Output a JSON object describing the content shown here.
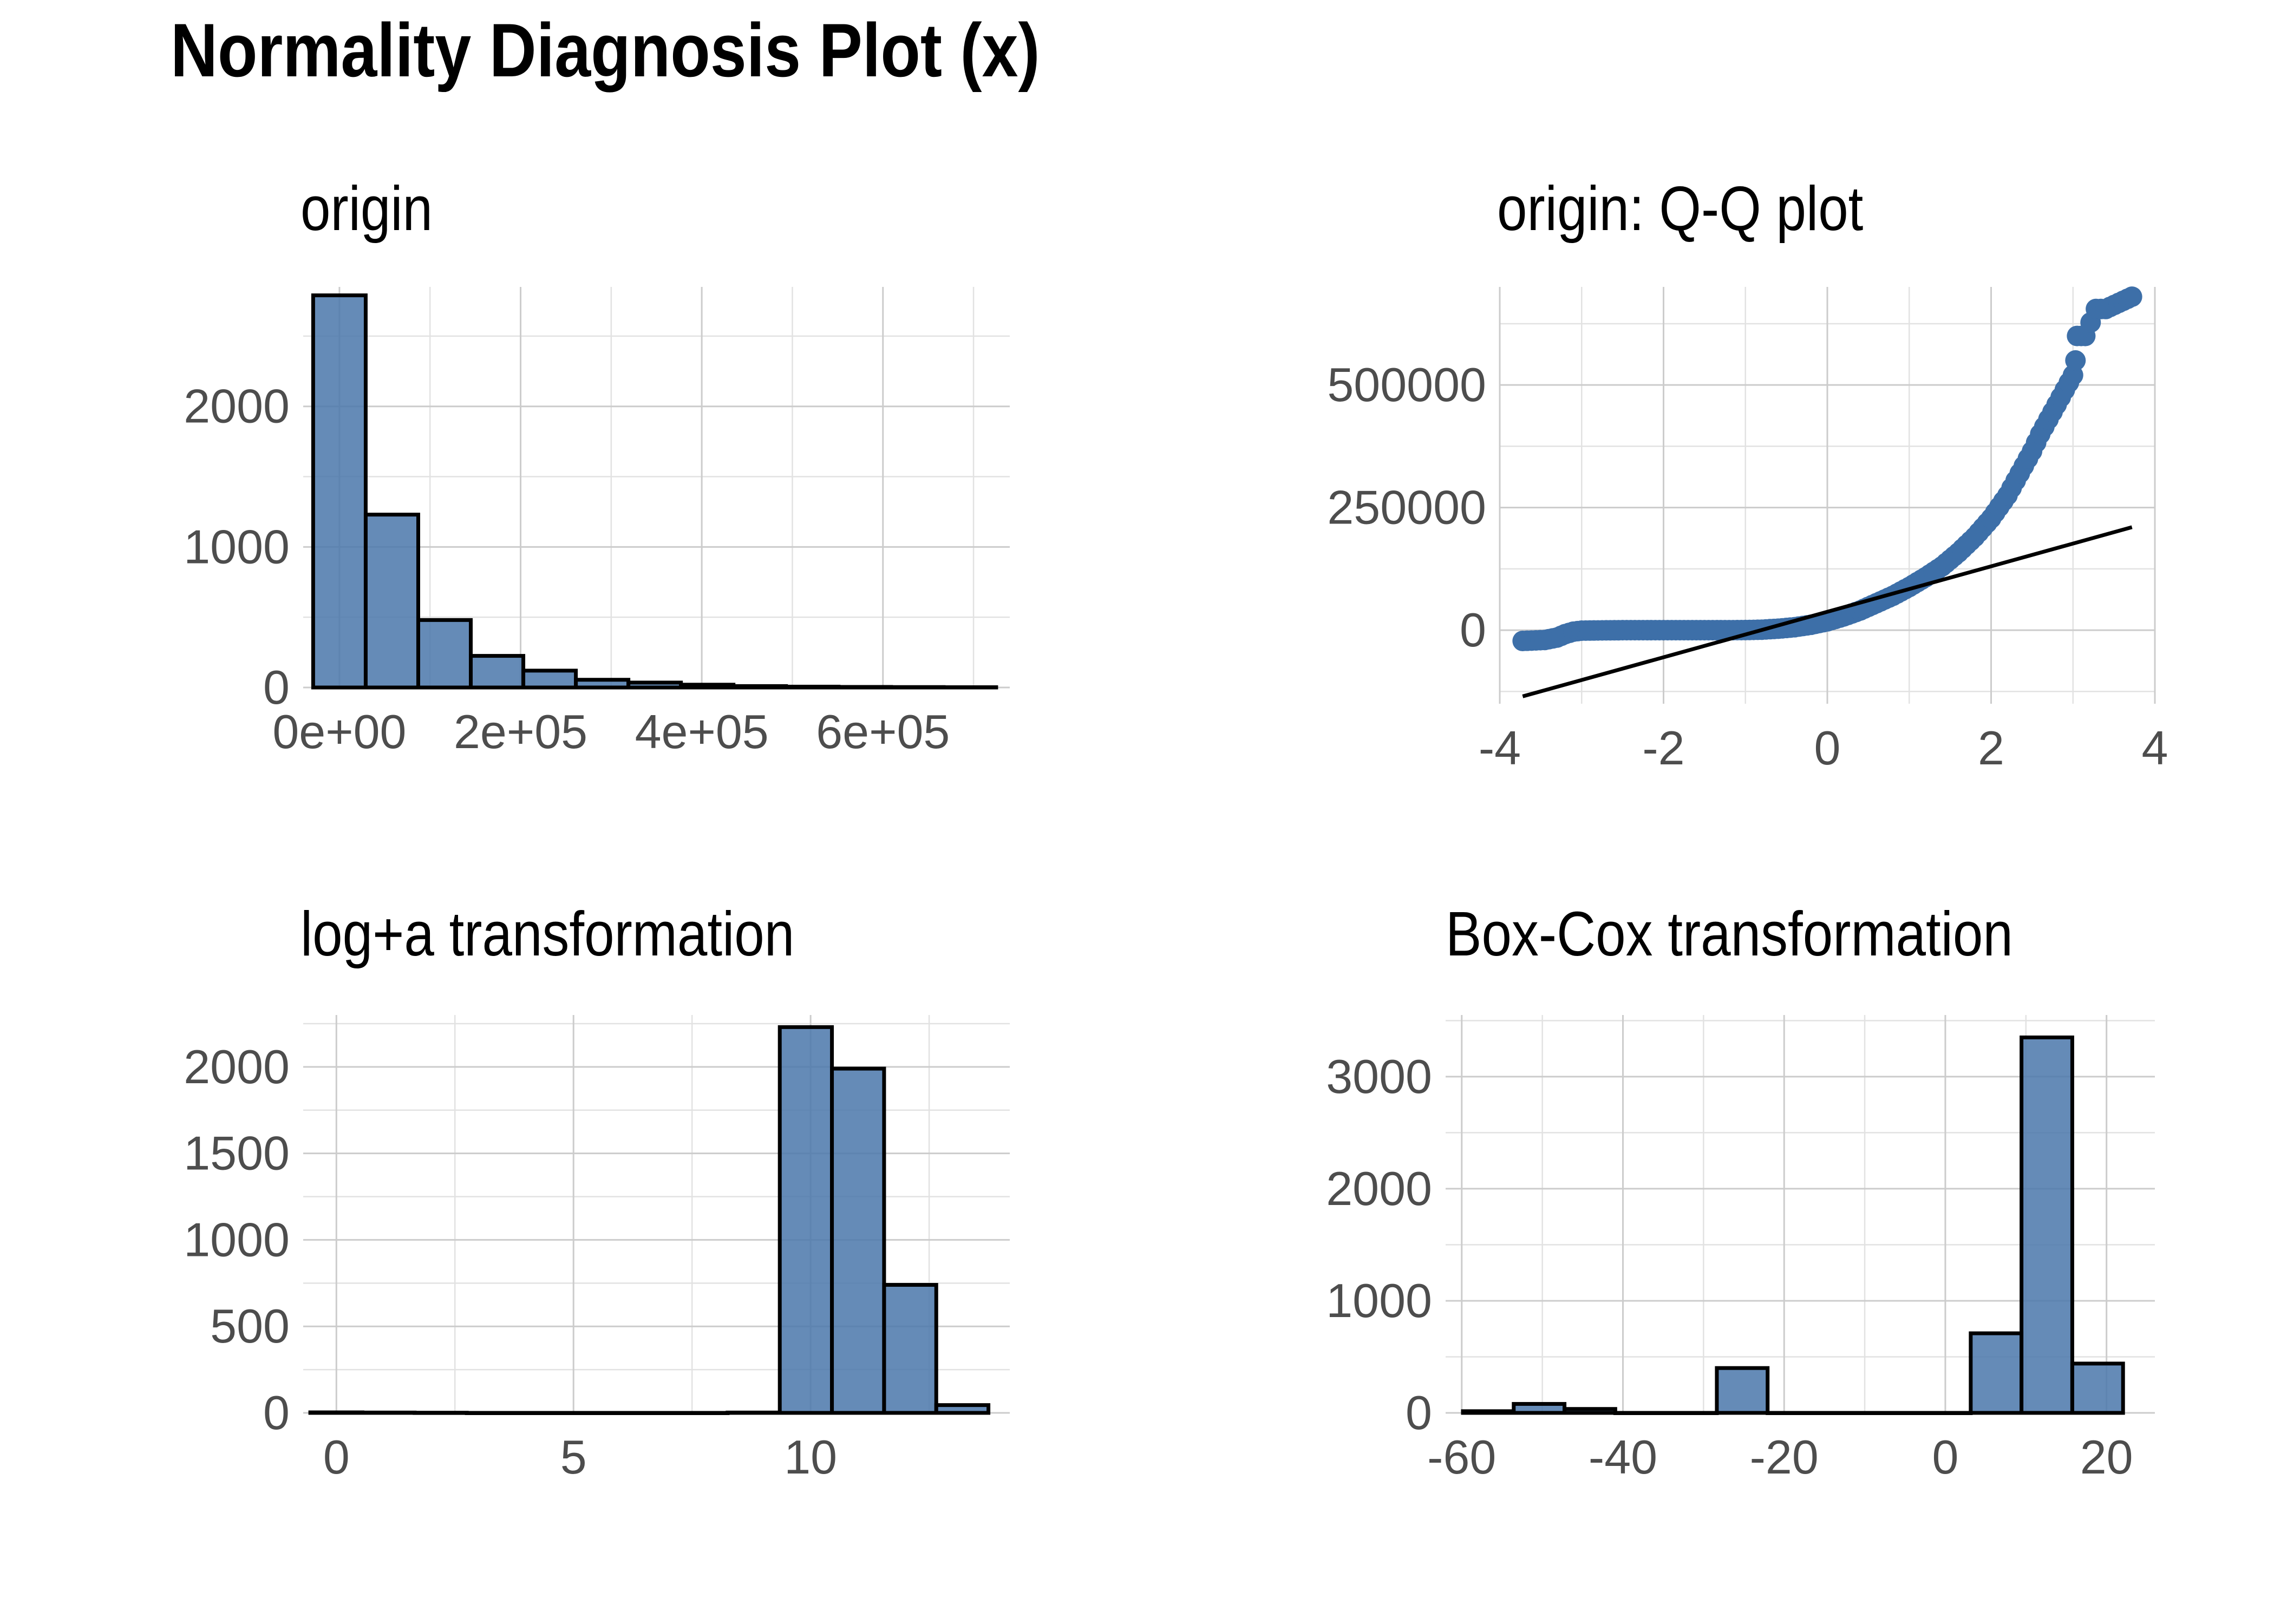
{
  "title": "Normality Diagnosis Plot (x)",
  "colors": {
    "fill": "#4a77aa",
    "point": "#3d6fa8",
    "outline": "#000000",
    "grid": "#cccccc",
    "tick_text": "#4d4d4d"
  },
  "chart_data": [
    {
      "id": "origin",
      "type": "bar",
      "title": "origin",
      "xlim": [
        -40000,
        740000
      ],
      "ylim": [
        0,
        2850
      ],
      "x_ticks": [
        {
          "value": 0,
          "label": "0e+00"
        },
        {
          "value": 200000,
          "label": "2e+05"
        },
        {
          "value": 400000,
          "label": "4e+05"
        },
        {
          "value": 600000,
          "label": "6e+05"
        }
      ],
      "y_ticks": [
        {
          "value": 0,
          "label": "0"
        },
        {
          "value": 1000,
          "label": "1000"
        },
        {
          "value": 2000,
          "label": "2000"
        }
      ],
      "bin_width": 58000,
      "bins": [
        {
          "x": 0,
          "count": 2790
        },
        {
          "x": 58000,
          "count": 1230
        },
        {
          "x": 116000,
          "count": 480
        },
        {
          "x": 174000,
          "count": 225
        },
        {
          "x": 232000,
          "count": 120
        },
        {
          "x": 290000,
          "count": 55
        },
        {
          "x": 348000,
          "count": 35
        },
        {
          "x": 406000,
          "count": 20
        },
        {
          "x": 464000,
          "count": 10
        },
        {
          "x": 522000,
          "count": 6
        },
        {
          "x": 580000,
          "count": 4
        },
        {
          "x": 638000,
          "count": 3
        },
        {
          "x": 696000,
          "count": 2
        }
      ]
    },
    {
      "id": "qq",
      "type": "scatter",
      "title": "origin: Q-Q plot",
      "xlim": [
        -4,
        4
      ],
      "ylim": [
        -150000,
        700000
      ],
      "x_ticks": [
        {
          "value": -4,
          "label": "-4"
        },
        {
          "value": -2,
          "label": "-2"
        },
        {
          "value": 0,
          "label": "0"
        },
        {
          "value": 2,
          "label": "2"
        },
        {
          "value": 4,
          "label": "4"
        }
      ],
      "y_ticks": [
        {
          "value": 0,
          "label": "0"
        },
        {
          "value": 250000,
          "label": "250000"
        },
        {
          "value": 500000,
          "label": "500000"
        }
      ],
      "points": [
        [
          -3.72,
          -22000
        ],
        [
          -3.45,
          -20000
        ],
        [
          -3.3,
          -15000
        ],
        [
          -3.2,
          -8000
        ],
        [
          -3.1,
          -3000
        ],
        [
          -3.0,
          -1000
        ],
        [
          -2.8,
          -500
        ],
        [
          -2.5,
          0
        ],
        [
          -2.2,
          0
        ],
        [
          -2.0,
          0
        ],
        [
          -1.8,
          0
        ],
        [
          -1.5,
          0
        ],
        [
          -1.2,
          0
        ],
        [
          -1.0,
          200
        ],
        [
          -0.8,
          1000
        ],
        [
          -0.6,
          3000
        ],
        [
          -0.4,
          6000
        ],
        [
          -0.2,
          11000
        ],
        [
          0.0,
          18000
        ],
        [
          0.2,
          28000
        ],
        [
          0.4,
          40000
        ],
        [
          0.6,
          55000
        ],
        [
          0.8,
          70000
        ],
        [
          1.0,
          88000
        ],
        [
          1.2,
          108000
        ],
        [
          1.4,
          130000
        ],
        [
          1.6,
          158000
        ],
        [
          1.8,
          190000
        ],
        [
          2.0,
          228000
        ],
        [
          2.2,
          275000
        ],
        [
          2.4,
          335000
        ],
        [
          2.5,
          365000
        ],
        [
          2.6,
          400000
        ],
        [
          2.7,
          430000
        ],
        [
          2.8,
          460000
        ],
        [
          2.9,
          490000
        ],
        [
          3.0,
          520000
        ],
        [
          3.03,
          550000
        ],
        [
          3.05,
          600000
        ],
        [
          3.15,
          600000
        ],
        [
          3.28,
          655000
        ],
        [
          3.4,
          655000
        ],
        [
          3.72,
          680000
        ]
      ],
      "reference_line": [
        [
          -3.72,
          -135000
        ],
        [
          3.72,
          210000
        ]
      ]
    },
    {
      "id": "log",
      "type": "bar",
      "title": "log+a transformation",
      "xlim": [
        -0.7,
        14.2
      ],
      "ylim": [
        0,
        2300
      ],
      "x_ticks": [
        {
          "value": 0,
          "label": "0"
        },
        {
          "value": 5,
          "label": "5"
        },
        {
          "value": 10,
          "label": "10"
        }
      ],
      "y_ticks": [
        {
          "value": 0,
          "label": "0"
        },
        {
          "value": 500,
          "label": "500"
        },
        {
          "value": 1000,
          "label": "1000"
        },
        {
          "value": 1500,
          "label": "1500"
        },
        {
          "value": 2000,
          "label": "2000"
        }
      ],
      "bin_width": 1.1,
      "bins": [
        {
          "x": 0,
          "count": 3
        },
        {
          "x": 1.1,
          "count": 2
        },
        {
          "x": 2.2,
          "count": 1
        },
        {
          "x": 3.3,
          "count": 0
        },
        {
          "x": 4.4,
          "count": 0
        },
        {
          "x": 5.5,
          "count": 0
        },
        {
          "x": 6.6,
          "count": 0
        },
        {
          "x": 7.7,
          "count": 0
        },
        {
          "x": 8.8,
          "count": 2
        },
        {
          "x": 9.9,
          "count": 2230
        },
        {
          "x": 11.0,
          "count": 1990
        },
        {
          "x": 12.1,
          "count": 740
        },
        {
          "x": 13.2,
          "count": 45
        }
      ]
    },
    {
      "id": "boxcox",
      "type": "bar",
      "title": "Box-Cox transformation",
      "xlim": [
        -62,
        26
      ],
      "ylim": [
        0,
        3550
      ],
      "x_ticks": [
        {
          "value": -60,
          "label": "-60"
        },
        {
          "value": -40,
          "label": "-40"
        },
        {
          "value": -20,
          "label": "-20"
        },
        {
          "value": 0,
          "label": "0"
        },
        {
          "value": 20,
          "label": "20"
        }
      ],
      "y_ticks": [
        {
          "value": 0,
          "label": "0"
        },
        {
          "value": 1000,
          "label": "1000"
        },
        {
          "value": 2000,
          "label": "2000"
        },
        {
          "value": 3000,
          "label": "3000"
        }
      ],
      "bin_width": 6.3,
      "bins": [
        {
          "x": -56.7,
          "count": 15
        },
        {
          "x": -50.4,
          "count": 80
        },
        {
          "x": -44.1,
          "count": 35
        },
        {
          "x": -37.8,
          "count": 0
        },
        {
          "x": -31.5,
          "count": 0
        },
        {
          "x": -25.2,
          "count": 400
        },
        {
          "x": -18.9,
          "count": 0
        },
        {
          "x": -12.6,
          "count": 0
        },
        {
          "x": -6.3,
          "count": 0
        },
        {
          "x": 0.0,
          "count": 0
        },
        {
          "x": 6.3,
          "count": 710
        },
        {
          "x": 12.6,
          "count": 3350
        },
        {
          "x": 18.9,
          "count": 440
        }
      ]
    }
  ]
}
